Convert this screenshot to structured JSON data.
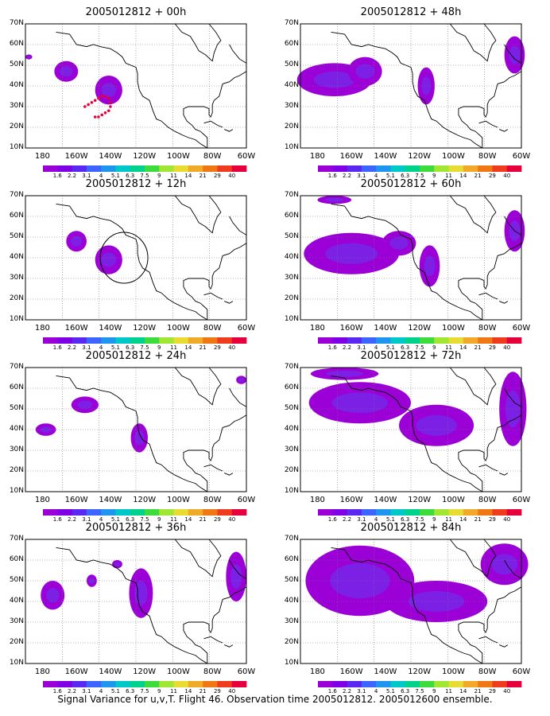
{
  "caption": "Signal Variance for u,v,T. Flight 46. Observation time 2005012812. 2005012600 ensemble.",
  "panels": [
    {
      "title": "2005012812 + 00h"
    },
    {
      "title": "2005012812 + 48h"
    },
    {
      "title": "2005012812 + 12h"
    },
    {
      "title": "2005012812 + 60h"
    },
    {
      "title": "2005012812 + 24h"
    },
    {
      "title": "2005012812 + 72h"
    },
    {
      "title": "2005012812 + 36h"
    },
    {
      "title": "2005012812 + 84h"
    }
  ],
  "lat_labels": [
    "70N",
    "60N",
    "50N",
    "40N",
    "30N",
    "20N",
    "10N"
  ],
  "lon_labels": [
    "180",
    "160W",
    "140W",
    "120W",
    "100W",
    "80W",
    "60W"
  ],
  "colorbar": {
    "labels": [
      "1.6",
      "2.2",
      "3.1",
      "4",
      "5.1",
      "6.3",
      "7.5",
      "9",
      "11",
      "14",
      "21",
      "29",
      "40"
    ],
    "colors": [
      "#9b00d7",
      "#7d00e6",
      "#5a28f0",
      "#3c64ff",
      "#1e96f0",
      "#00c8c8",
      "#00d28c",
      "#3cdc3c",
      "#a0e632",
      "#e6dc32",
      "#f0aa28",
      "#f07814",
      "#f03c1e",
      "#e6003c"
    ]
  },
  "colors": {
    "shade_outer": "#9b00d7",
    "shade_inner": "#7d20e6",
    "dots": "#e6003c"
  }
}
